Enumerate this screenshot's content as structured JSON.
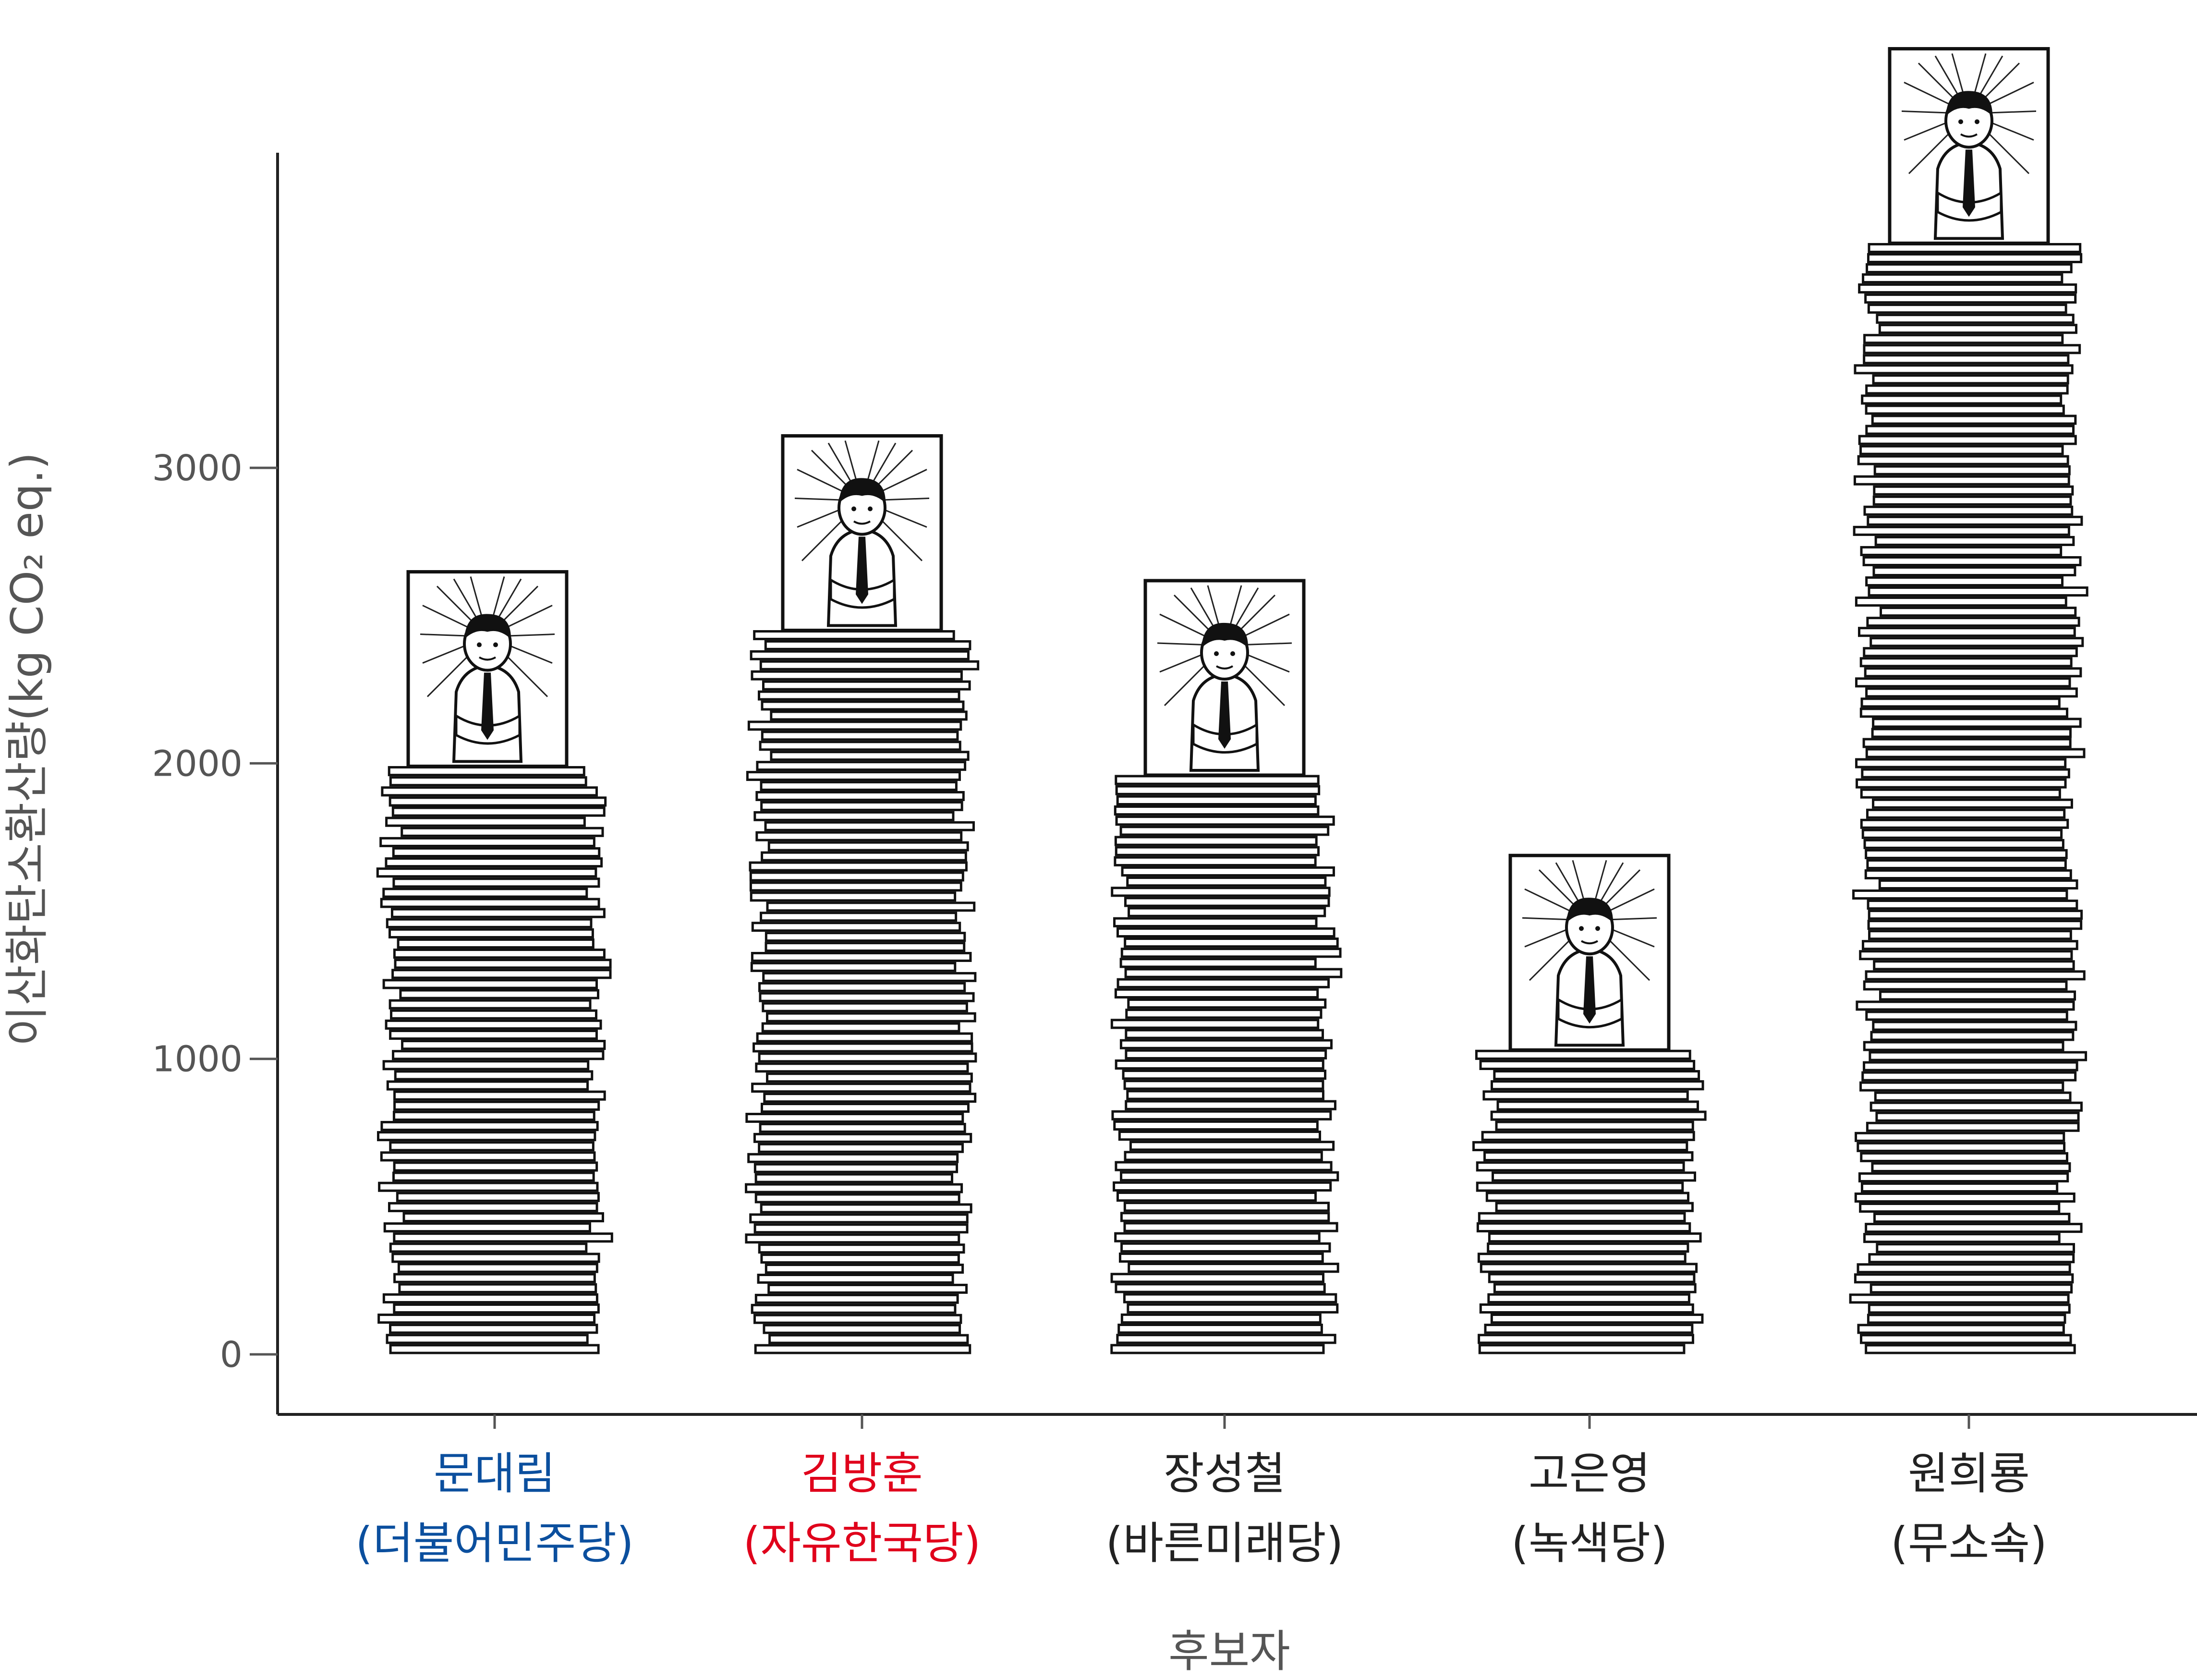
{
  "chart_data": {
    "type": "bar",
    "title": "",
    "xlabel": "후보자",
    "ylabel": "이산화탄소환산량(kg CO₂ eq.)",
    "ylim": [
      0,
      4200
    ],
    "yticks": [
      0,
      1000,
      2000,
      3000
    ],
    "grid": false,
    "categories": [
      {
        "name": "문대림",
        "party": "(더불어민주당)",
        "color": "#0b4f9e"
      },
      {
        "name": "김방훈",
        "party": "(자유한국당)",
        "color": "#e0001b"
      },
      {
        "name": "장성철",
        "party": "(바른미래당)",
        "color": "#222222"
      },
      {
        "name": "고은영",
        "party": "(녹색당)",
        "color": "#222222"
      },
      {
        "name": "원희룡",
        "party": "(무소속)",
        "color": "#222222"
      }
    ],
    "values": [
      1990,
      2450,
      1960,
      1030,
      3760
    ],
    "bar_style": "stacked-paper-sheets-with-candidate-portrait-on-top",
    "icon": "candidate-portrait-icon"
  }
}
